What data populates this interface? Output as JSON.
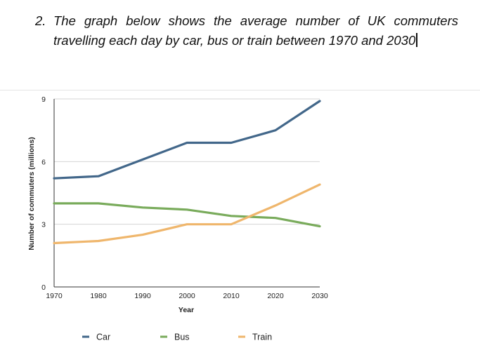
{
  "question": {
    "number": "2.",
    "line1": "The graph below shows the average number of UK commuters",
    "line2": "travelling each day by car, bus or train between 1970 and 2030"
  },
  "chart_data": {
    "type": "line",
    "title": "",
    "xlabel": "Year",
    "ylabel": "Number of commuters (millions)",
    "x": [
      1970,
      1980,
      1990,
      2000,
      2010,
      2020,
      2030
    ],
    "x_tick_labels": [
      "1970",
      "1980",
      "1990",
      "2000",
      "2010",
      "2020",
      "2030"
    ],
    "ylim": [
      0,
      9
    ],
    "y_ticks": [
      0,
      3,
      6,
      9
    ],
    "y_tick_labels": [
      "0",
      "3",
      "6",
      "9"
    ],
    "grid": true,
    "legend_position": "bottom",
    "series": [
      {
        "name": "Car",
        "color": "#42678a",
        "values": [
          5.2,
          5.3,
          6.1,
          6.9,
          6.9,
          7.5,
          8.9
        ]
      },
      {
        "name": "Bus",
        "color": "#79ab5b",
        "values": [
          4.0,
          4.0,
          3.8,
          3.7,
          3.4,
          3.3,
          2.9
        ]
      },
      {
        "name": "Train",
        "color": "#efb66c",
        "values": [
          2.1,
          2.2,
          2.5,
          3.0,
          3.0,
          3.9,
          4.9
        ]
      }
    ]
  }
}
